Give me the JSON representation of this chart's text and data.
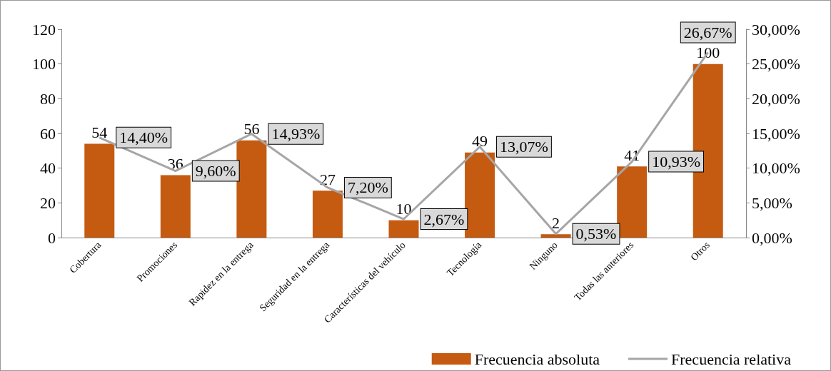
{
  "chart_data": {
    "type": "bar",
    "categories": [
      "Cobertura",
      "Promociones",
      "Rapidez en la entrega",
      "Seguridad en la entrega",
      "Características del vehículo",
      "Tecnología",
      "Ninguno",
      "Todas las anteriores",
      "Otros"
    ],
    "series": [
      {
        "name": "Frecuencia absoluta",
        "type": "bar",
        "color": "#c55a11",
        "values": [
          54,
          36,
          56,
          27,
          10,
          49,
          2,
          41,
          100
        ]
      },
      {
        "name": "Frecuencia relativa",
        "type": "line",
        "axis": "y2",
        "color": "#a6a6a6",
        "values": [
          14.4,
          9.6,
          14.93,
          7.2,
          2.67,
          13.07,
          0.53,
          10.93,
          26.67
        ],
        "value_labels": [
          "14,40%",
          "9,60%",
          "14,93%",
          "7,20%",
          "2,67%",
          "13,07%",
          "0,53%",
          "10,93%",
          "26,67%"
        ]
      }
    ],
    "ylim": [
      0,
      120
    ],
    "yticks": [
      0,
      20,
      40,
      60,
      80,
      100,
      120
    ],
    "y2lim": [
      0,
      30
    ],
    "y2ticks": [
      {
        "value": 0,
        "label": "0,00%"
      },
      {
        "value": 5,
        "label": "5,00%"
      },
      {
        "value": 10,
        "label": "10,00%"
      },
      {
        "value": 15,
        "label": "15,00%"
      },
      {
        "value": 20,
        "label": "20,00%"
      },
      {
        "value": 25,
        "label": "25,00%"
      },
      {
        "value": 30,
        "label": "30,00%"
      }
    ],
    "data_labels": true,
    "grid": false,
    "legend": "bottom right",
    "marker": "none",
    "line_style": "solid"
  }
}
